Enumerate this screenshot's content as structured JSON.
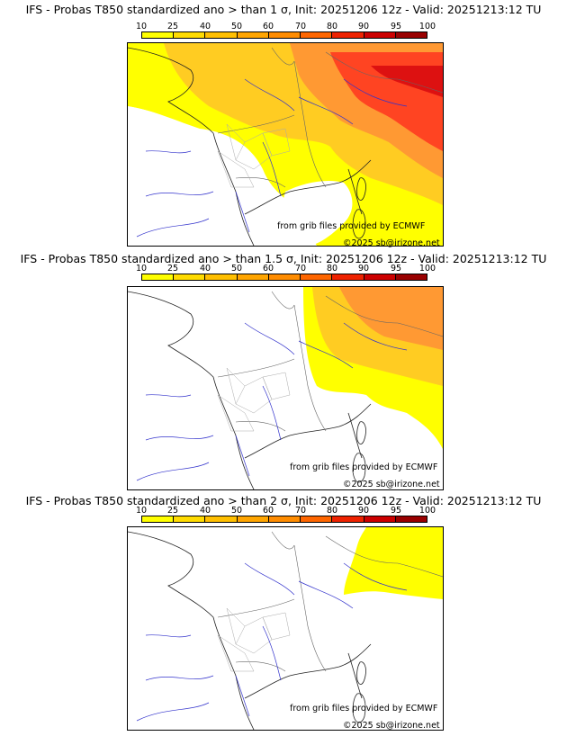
{
  "scale_labels": [
    "10",
    "25",
    "40",
    "50",
    "60",
    "70",
    "80",
    "90",
    "95",
    "100"
  ],
  "scale_colors": [
    "#ffff00",
    "#ffdb00",
    "#ffbf00",
    "#ffa500",
    "#ff8c00",
    "#ff6600",
    "#ee2200",
    "#cc0000",
    "#990000",
    "#660000"
  ],
  "credit": "from grib files provided by ECMWF",
  "copyright": "©2025 sb@irizone.net",
  "panels": [
    {
      "title": "IFS - Probas T850  standardized ano > than 1 σ, Init: 20251206 12z - Valid: 20251213:12 TU"
    },
    {
      "title": "IFS - Probas T850  standardized ano > than 1.5 σ, Init: 20251206 12z - Valid: 20251213:12 TU"
    },
    {
      "title": "IFS - Probas T850  standardized ano > than 2 σ, Init: 20251206 12z - Valid: 20251213:12 TU"
    }
  ]
}
